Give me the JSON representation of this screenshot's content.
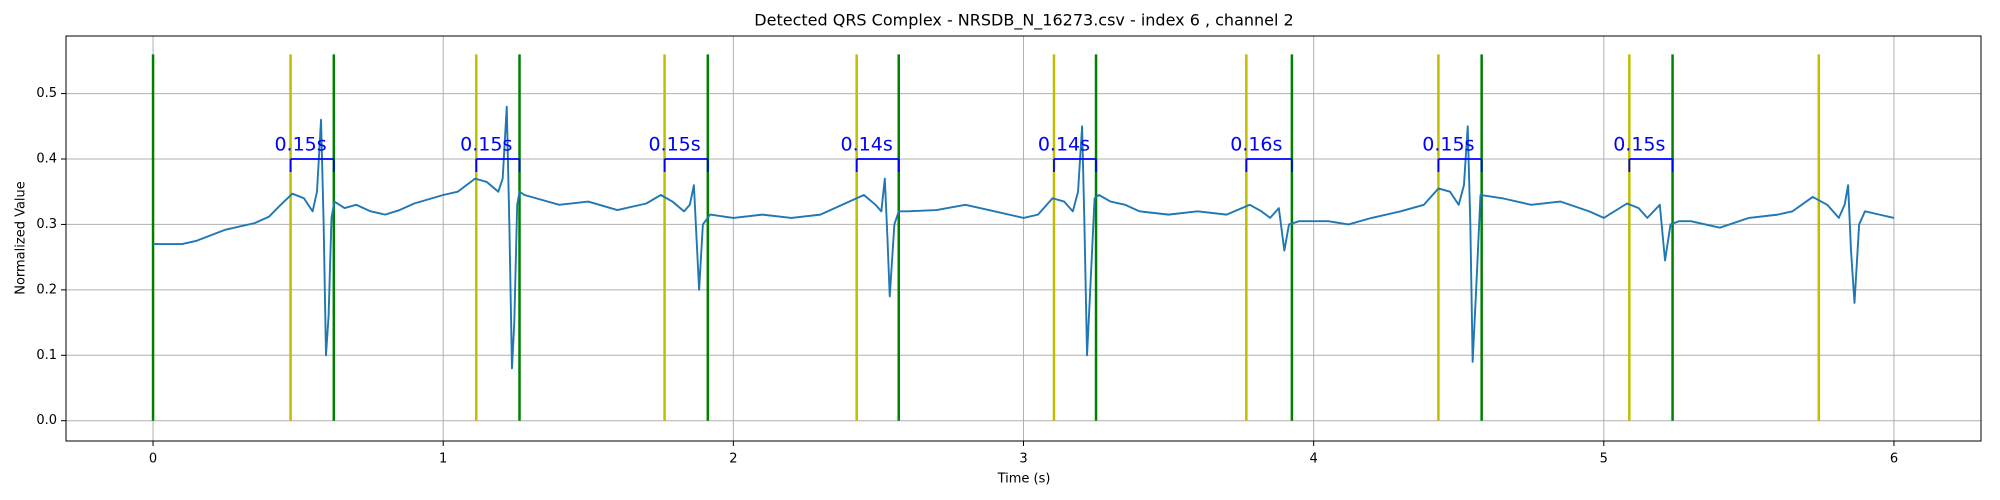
{
  "chart_data": {
    "type": "line",
    "title": "Detected QRS Complex - NRSDB_N_16273.csv - index 6 , channel 2",
    "xlabel": "Time (s)",
    "ylabel": "Normalized Value",
    "xlim": [
      -0.3,
      6.3
    ],
    "ylim": [
      -0.031,
      0.588
    ],
    "xticks": [
      0,
      1,
      2,
      3,
      4,
      5,
      6
    ],
    "yticks": [
      {
        "value": 0,
        "label": "0.0"
      },
      0.1,
      0.2,
      0.3,
      0.4,
      0.5
    ],
    "grid": true,
    "x": [
      0,
      0.1,
      0.15,
      0.25,
      0.35,
      0.4,
      0.44,
      0.48,
      0.52,
      0.55,
      0.565,
      0.579,
      0.588,
      0.596,
      0.605,
      0.615,
      0.625,
      0.66,
      0.7,
      0.75,
      0.8,
      0.85,
      0.9,
      1.0,
      1.05,
      1.11,
      1.15,
      1.19,
      1.205,
      1.219,
      1.228,
      1.237,
      1.245,
      1.255,
      1.263,
      1.28,
      1.32,
      1.4,
      1.5,
      1.6,
      1.7,
      1.75,
      1.79,
      1.83,
      1.85,
      1.864,
      1.873,
      1.882,
      1.895,
      1.92,
      2.0,
      2.1,
      2.2,
      2.3,
      2.4,
      2.45,
      2.49,
      2.51,
      2.522,
      2.531,
      2.539,
      2.555,
      2.57,
      2.6,
      2.7,
      2.8,
      2.9,
      3.0,
      3.05,
      3.1,
      3.14,
      3.17,
      3.188,
      3.202,
      3.21,
      3.219,
      3.23,
      3.245,
      3.26,
      3.3,
      3.35,
      3.4,
      3.5,
      3.6,
      3.7,
      3.78,
      3.82,
      3.85,
      3.88,
      3.899,
      3.915,
      3.95,
      4.05,
      4.12,
      4.2,
      4.3,
      4.38,
      4.43,
      4.47,
      4.5,
      4.518,
      4.531,
      4.54,
      4.548,
      4.56,
      4.575,
      4.65,
      4.75,
      4.85,
      4.95,
      5.0,
      5.08,
      5.12,
      5.15,
      5.193,
      5.211,
      5.23,
      5.26,
      5.3,
      5.4,
      5.5,
      5.6,
      5.65,
      5.72,
      5.77,
      5.81,
      5.83,
      5.842,
      5.852,
      5.864,
      5.88,
      5.9,
      5.95,
      6.0
    ],
    "series": [
      {
        "color": "#1f77b4",
        "values": [
          0.27,
          0.27,
          0.275,
          0.292,
          0.302,
          0.312,
          0.33,
          0.347,
          0.34,
          0.32,
          0.35,
          0.46,
          0.3,
          0.1,
          0.16,
          0.31,
          0.335,
          0.325,
          0.33,
          0.32,
          0.315,
          0.322,
          0.332,
          0.345,
          0.35,
          0.37,
          0.365,
          0.35,
          0.37,
          0.48,
          0.3,
          0.08,
          0.15,
          0.33,
          0.35,
          0.345,
          0.34,
          0.33,
          0.335,
          0.322,
          0.332,
          0.345,
          0.335,
          0.32,
          0.33,
          0.36,
          0.28,
          0.2,
          0.3,
          0.315,
          0.31,
          0.315,
          0.31,
          0.315,
          0.335,
          0.345,
          0.33,
          0.32,
          0.37,
          0.28,
          0.19,
          0.3,
          0.32,
          0.32,
          0.322,
          0.33,
          0.32,
          0.31,
          0.315,
          0.34,
          0.335,
          0.32,
          0.35,
          0.45,
          0.3,
          0.1,
          0.2,
          0.34,
          0.345,
          0.335,
          0.33,
          0.32,
          0.315,
          0.32,
          0.315,
          0.33,
          0.32,
          0.31,
          0.325,
          0.26,
          0.3,
          0.305,
          0.305,
          0.3,
          0.31,
          0.32,
          0.33,
          0.355,
          0.35,
          0.33,
          0.36,
          0.45,
          0.3,
          0.09,
          0.2,
          0.345,
          0.34,
          0.33,
          0.335,
          0.32,
          0.31,
          0.332,
          0.325,
          0.31,
          0.33,
          0.245,
          0.3,
          0.305,
          0.305,
          0.295,
          0.31,
          0.315,
          0.32,
          0.342,
          0.33,
          0.31,
          0.33,
          0.36,
          0.26,
          0.18,
          0.3,
          0.32,
          0.315,
          0.31
        ]
      }
    ],
    "vline_range": [
      0,
      0.56
    ],
    "vlines": [
      {
        "color": "#bfbf00",
        "x": [
          0.474,
          1.114,
          1.763,
          2.425,
          3.105,
          3.768,
          4.43,
          5.088,
          5.741
        ]
      },
      {
        "color": "#008000",
        "x": [
          0,
          0.623,
          1.263,
          1.912,
          2.57,
          3.25,
          3.925,
          4.579,
          5.237
        ]
      }
    ],
    "annotations": [
      {
        "x": [
          0.474,
          0.623
        ],
        "y": 0.4,
        "label": "0.15s",
        "color": "#0000ff"
      },
      {
        "x": [
          1.114,
          1.263
        ],
        "y": 0.4,
        "label": "0.15s",
        "color": "#0000ff"
      },
      {
        "x": [
          1.763,
          1.912
        ],
        "y": 0.4,
        "label": "0.15s",
        "color": "#0000ff"
      },
      {
        "x": [
          2.425,
          2.57
        ],
        "y": 0.4,
        "label": "0.14s",
        "color": "#0000ff"
      },
      {
        "x": [
          3.105,
          3.25
        ],
        "y": 0.4,
        "label": "0.14s",
        "color": "#0000ff"
      },
      {
        "x": [
          3.768,
          3.925
        ],
        "y": 0.4,
        "label": "0.16s",
        "color": "#0000ff"
      },
      {
        "x": [
          4.43,
          4.579
        ],
        "y": 0.4,
        "label": "0.15s",
        "color": "#0000ff"
      },
      {
        "x": [
          5.088,
          5.237
        ],
        "y": 0.4,
        "label": "0.15s",
        "color": "#0000ff"
      }
    ]
  }
}
